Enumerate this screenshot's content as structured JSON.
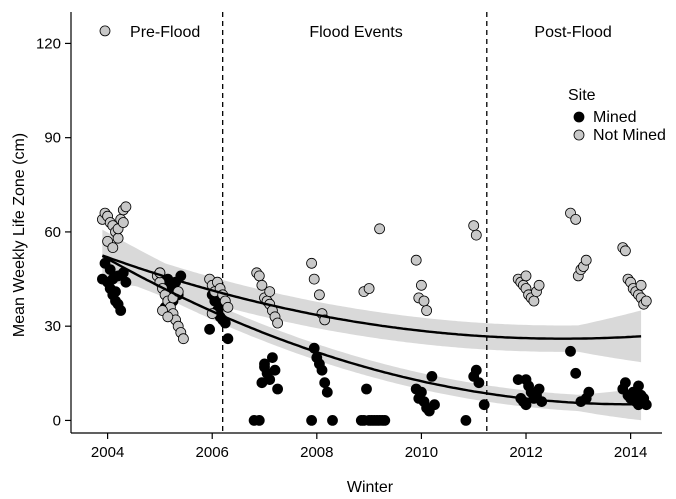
{
  "chart_data": {
    "type": "scatter",
    "title": "",
    "xlabel": "Winter",
    "ylabel": "Mean Weekly Life Zone (cm)",
    "xlim": [
      2003.3,
      2014.6
    ],
    "ylim": [
      -4,
      130
    ],
    "xticks": [
      2004,
      2006,
      2008,
      2010,
      2012,
      2014
    ],
    "yticks": [
      0,
      30,
      60,
      90,
      120
    ],
    "grid": false,
    "periods": {
      "boundaries": [
        2006.2,
        2011.25
      ],
      "labels": [
        {
          "text": "Pre-Flood",
          "x": 2005.1
        },
        {
          "text": "Flood Events",
          "x": 2008.75
        },
        {
          "text": "Post-Flood",
          "x": 2012.9
        }
      ]
    },
    "legend": {
      "title": "Site",
      "position": "right",
      "entries": [
        {
          "label": "Mined",
          "color": "#000000"
        },
        {
          "label": "Not Mined",
          "color": "#c8c8c8"
        }
      ]
    },
    "series": [
      {
        "name": "Mined",
        "color": "#000000",
        "fit": {
          "a": 0.4658,
          "b": -10.22,
          "c": 61.2,
          "x0": 2003,
          "band": 2.6
        },
        "points": [
          [
            2003.95,
            50
          ],
          [
            2003.9,
            45
          ],
          [
            2004.0,
            44
          ],
          [
            2004.05,
            42
          ],
          [
            2004.1,
            40
          ],
          [
            2004.15,
            38
          ],
          [
            2004.2,
            37
          ],
          [
            2004.25,
            35
          ],
          [
            2004.1,
            45
          ],
          [
            2004.3,
            47
          ],
          [
            2004.35,
            44
          ],
          [
            2004.05,
            48
          ],
          [
            2004.2,
            46
          ],
          [
            2004.15,
            41
          ],
          [
            2005.0,
            47
          ],
          [
            2005.05,
            44
          ],
          [
            2005.1,
            42
          ],
          [
            2005.15,
            45
          ],
          [
            2005.2,
            40
          ],
          [
            2005.25,
            38
          ],
          [
            2005.1,
            36
          ],
          [
            2005.3,
            44
          ],
          [
            2005.35,
            40
          ],
          [
            2005.2,
            43
          ],
          [
            2005.4,
            46
          ],
          [
            2006.0,
            40
          ],
          [
            2006.05,
            38
          ],
          [
            2006.1,
            35
          ],
          [
            2006.15,
            33
          ],
          [
            2006.2,
            32
          ],
          [
            2006.25,
            31
          ],
          [
            2005.95,
            29
          ],
          [
            2006.1,
            42
          ],
          [
            2006.15,
            37
          ],
          [
            2006.3,
            26
          ],
          [
            2006.8,
            0
          ],
          [
            2006.9,
            0
          ],
          [
            2006.95,
            12
          ],
          [
            2007.0,
            17
          ],
          [
            2007.05,
            15
          ],
          [
            2007.1,
            13
          ],
          [
            2007.15,
            20
          ],
          [
            2007.2,
            16
          ],
          [
            2007.25,
            10
          ],
          [
            2007.0,
            18
          ],
          [
            2007.9,
            0
          ],
          [
            2007.95,
            23
          ],
          [
            2008.0,
            20
          ],
          [
            2008.05,
            18
          ],
          [
            2008.1,
            16
          ],
          [
            2008.15,
            12
          ],
          [
            2008.2,
            9
          ],
          [
            2008.3,
            0
          ],
          [
            2008.85,
            0
          ],
          [
            2008.9,
            0
          ],
          [
            2008.95,
            10
          ],
          [
            2009.0,
            0
          ],
          [
            2009.05,
            0
          ],
          [
            2009.1,
            0
          ],
          [
            2009.15,
            0
          ],
          [
            2009.2,
            0
          ],
          [
            2009.25,
            0
          ],
          [
            2009.3,
            0
          ],
          [
            2009.9,
            10
          ],
          [
            2009.95,
            7
          ],
          [
            2010.0,
            9
          ],
          [
            2010.05,
            6
          ],
          [
            2010.1,
            4
          ],
          [
            2010.15,
            3
          ],
          [
            2010.2,
            14
          ],
          [
            2010.25,
            5
          ],
          [
            2010.85,
            0
          ],
          [
            2011.0,
            14
          ],
          [
            2011.05,
            16
          ],
          [
            2011.1,
            12
          ],
          [
            2011.2,
            5
          ],
          [
            2011.85,
            13
          ],
          [
            2011.9,
            7
          ],
          [
            2011.95,
            6
          ],
          [
            2012.0,
            13
          ],
          [
            2012.05,
            11
          ],
          [
            2012.1,
            9
          ],
          [
            2012.15,
            7
          ],
          [
            2012.2,
            8
          ],
          [
            2012.25,
            10
          ],
          [
            2012.3,
            6
          ],
          [
            2012.0,
            5
          ],
          [
            2012.85,
            22
          ],
          [
            2012.95,
            15
          ],
          [
            2013.05,
            6
          ],
          [
            2013.15,
            7
          ],
          [
            2013.2,
            9
          ],
          [
            2013.85,
            10
          ],
          [
            2013.9,
            12
          ],
          [
            2013.95,
            8
          ],
          [
            2014.0,
            7
          ],
          [
            2014.05,
            9
          ],
          [
            2014.1,
            6
          ],
          [
            2014.15,
            5
          ],
          [
            2014.2,
            8
          ],
          [
            2014.25,
            7
          ],
          [
            2014.15,
            11
          ],
          [
            2014.3,
            5
          ]
        ]
      },
      {
        "name": "Not Mined",
        "color": "#c8c8c8",
        "fit": {
          "a": 0.3415,
          "b": -6.63,
          "c": 58.2,
          "x0": 2003,
          "band": 4.2
        },
        "points": [
          [
            2003.95,
            124
          ],
          [
            2003.9,
            64
          ],
          [
            2003.95,
            66
          ],
          [
            2004.0,
            65
          ],
          [
            2004.05,
            63
          ],
          [
            2004.1,
            62
          ],
          [
            2004.15,
            60
          ],
          [
            2004.2,
            58
          ],
          [
            2004.25,
            64
          ],
          [
            2004.3,
            67
          ],
          [
            2004.35,
            68
          ],
          [
            2004.0,
            57
          ],
          [
            2004.1,
            55
          ],
          [
            2004.2,
            61
          ],
          [
            2004.3,
            63
          ],
          [
            2004.95,
            46
          ],
          [
            2005.0,
            44
          ],
          [
            2005.05,
            42
          ],
          [
            2005.1,
            40
          ],
          [
            2005.15,
            38
          ],
          [
            2005.2,
            36
          ],
          [
            2005.25,
            34
          ],
          [
            2005.3,
            32
          ],
          [
            2005.35,
            30
          ],
          [
            2005.4,
            28
          ],
          [
            2005.45,
            26
          ],
          [
            2005.05,
            35
          ],
          [
            2005.15,
            33
          ],
          [
            2005.25,
            39
          ],
          [
            2005.35,
            41
          ],
          [
            2005.0,
            47
          ],
          [
            2005.95,
            45
          ],
          [
            2006.0,
            43
          ],
          [
            2006.05,
            41
          ],
          [
            2006.1,
            44
          ],
          [
            2006.15,
            42
          ],
          [
            2006.2,
            40
          ],
          [
            2006.25,
            38
          ],
          [
            2006.3,
            36
          ],
          [
            2006.0,
            34
          ],
          [
            2006.85,
            47
          ],
          [
            2006.9,
            46
          ],
          [
            2006.95,
            43
          ],
          [
            2007.0,
            39
          ],
          [
            2007.05,
            38
          ],
          [
            2007.1,
            37
          ],
          [
            2007.15,
            35
          ],
          [
            2007.2,
            33
          ],
          [
            2007.25,
            31
          ],
          [
            2007.1,
            41
          ],
          [
            2007.9,
            50
          ],
          [
            2007.95,
            45
          ],
          [
            2008.05,
            40
          ],
          [
            2008.1,
            34
          ],
          [
            2008.15,
            32
          ],
          [
            2008.9,
            41
          ],
          [
            2009.0,
            42
          ],
          [
            2009.2,
            61
          ],
          [
            2009.9,
            51
          ],
          [
            2009.95,
            39
          ],
          [
            2010.0,
            43
          ],
          [
            2010.05,
            38
          ],
          [
            2010.1,
            35
          ],
          [
            2011.0,
            62
          ],
          [
            2011.05,
            59
          ],
          [
            2011.85,
            45
          ],
          [
            2011.9,
            44
          ],
          [
            2011.95,
            43
          ],
          [
            2012.0,
            42
          ],
          [
            2012.05,
            40
          ],
          [
            2012.1,
            39
          ],
          [
            2012.15,
            38
          ],
          [
            2012.2,
            41
          ],
          [
            2012.25,
            43
          ],
          [
            2012.0,
            46
          ],
          [
            2012.85,
            66
          ],
          [
            2012.95,
            64
          ],
          [
            2013.0,
            46
          ],
          [
            2013.05,
            48
          ],
          [
            2013.1,
            49
          ],
          [
            2013.15,
            51
          ],
          [
            2013.85,
            55
          ],
          [
            2013.9,
            54
          ],
          [
            2013.95,
            45
          ],
          [
            2014.0,
            44
          ],
          [
            2014.05,
            42
          ],
          [
            2014.1,
            41
          ],
          [
            2014.15,
            40
          ],
          [
            2014.2,
            39
          ],
          [
            2014.25,
            37
          ],
          [
            2014.3,
            38
          ],
          [
            2014.2,
            43
          ]
        ]
      }
    ]
  }
}
